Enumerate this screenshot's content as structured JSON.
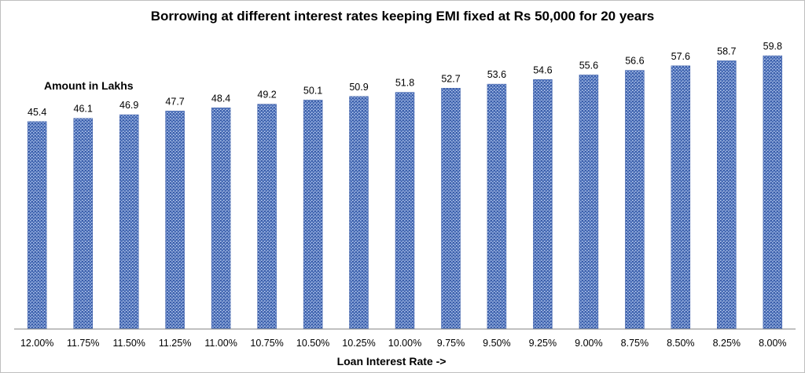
{
  "chart_data": {
    "type": "bar",
    "title": "Borrowing at different interest rates keeping EMI fixed at Rs 50,000 for 20 years",
    "ylabel": "Amount in Lakhs",
    "xlabel": "Loan Interest Rate ->",
    "categories": [
      "12.00%",
      "11.75%",
      "11.50%",
      "11.25%",
      "11.00%",
      "10.75%",
      "10.50%",
      "10.25%",
      "10.00%",
      "9.75%",
      "9.50%",
      "9.25%",
      "9.00%",
      "8.75%",
      "8.50%",
      "8.25%",
      "8.00%"
    ],
    "values": [
      45.4,
      46.1,
      46.9,
      47.7,
      48.4,
      49.2,
      50.1,
      50.9,
      51.8,
      52.7,
      53.6,
      54.6,
      55.6,
      56.6,
      57.6,
      58.7,
      59.8
    ],
    "value_labels": [
      "45.4",
      "46.1",
      "46.9",
      "47.7",
      "48.4",
      "49.2",
      "50.1",
      "50.9",
      "51.8",
      "52.7",
      "53.6",
      "54.6",
      "55.6",
      "56.6",
      "57.6",
      "58.7",
      "59.8"
    ],
    "grid": false,
    "legend": "none",
    "bar_color": "#5b7fc4"
  }
}
